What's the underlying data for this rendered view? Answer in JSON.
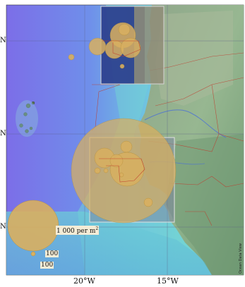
{
  "map": {
    "lat_labels": [
      "N",
      "N",
      "N"
    ],
    "lon_labels": [
      "20°W",
      "15°W"
    ],
    "legend": {
      "large_label": "1 000 per m",
      "large_superscript": "2",
      "small_label_1": "100",
      "small_label_2": "100"
    },
    "credit": "Ocean Data View",
    "colors": {
      "ocean_deep": "#7a78e6",
      "ocean_shelf": "#6fd0d6",
      "land": "#8fb08c",
      "circle_fill": "#d9b060",
      "border_red": "#c0392b"
    }
  }
}
